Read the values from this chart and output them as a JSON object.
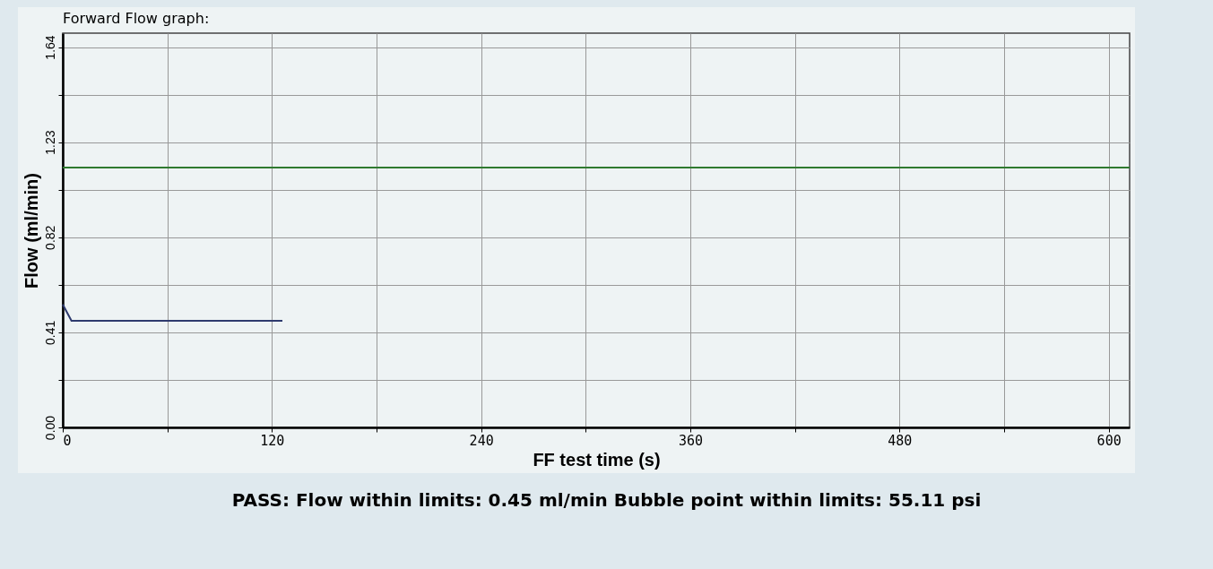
{
  "chart_data": {
    "type": "line",
    "title": "Forward Flow graph:",
    "xlabel": "FF test time (s)",
    "ylabel": "Flow (ml/min)",
    "xlim": [
      0,
      612
    ],
    "ylim": [
      0,
      1.7
    ],
    "xticks": [
      0,
      {
        "value": 60,
        "label": null
      },
      120,
      {
        "value": 180,
        "label": null
      },
      240,
      {
        "value": 300,
        "label": null
      },
      360,
      {
        "value": 420,
        "label": null
      },
      480,
      {
        "value": 540,
        "label": null
      },
      600
    ],
    "yticks": [
      {
        "value": 0,
        "label": "0.00"
      },
      {
        "value": 0.205,
        "label": null
      },
      0.41,
      {
        "value": 0.615,
        "label": null
      },
      0.82,
      {
        "value": 1.025,
        "label": null
      },
      1.23,
      {
        "value": 1.435,
        "label": null
      },
      1.64
    ],
    "grid": true,
    "marker": "none",
    "line_style": "solid",
    "series": [
      {
        "color": "#2e3a6e",
        "x": [
          0,
          5,
          126
        ],
        "values": [
          0.53,
          0.46,
          0.46
        ]
      }
    ],
    "ref_lines": [
      {
        "axis": "y",
        "value": 1.12,
        "color": "#2f7a2f"
      }
    ],
    "annotations": [
      "PASS: Flow within limits: 0.45 ml/min Bubble point within limits: 55.11 psi"
    ]
  }
}
